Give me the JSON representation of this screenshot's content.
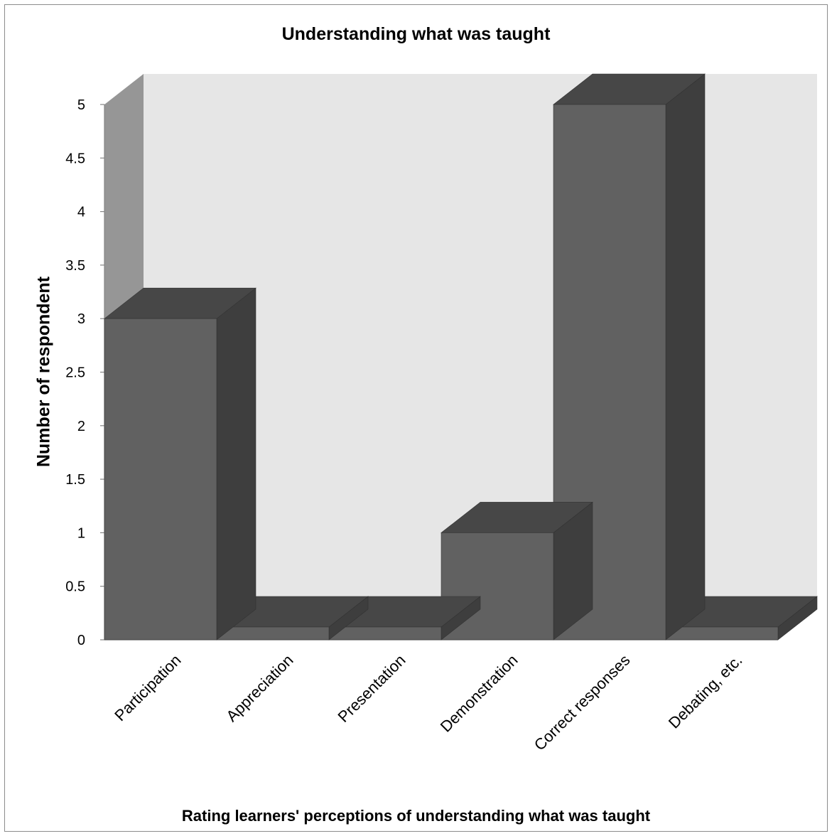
{
  "chart_data": {
    "type": "bar",
    "title": "Understanding what was taught",
    "xlabel": "Rating learners' perceptions of understanding what was taught",
    "ylabel": "Number of respondent",
    "categories": [
      "Participation",
      "Appreciation",
      "Presentation",
      "Demonstration",
      "Correct responses",
      "Debating, etc."
    ],
    "values": [
      3,
      0,
      0,
      1,
      5,
      0
    ],
    "ylim": [
      0,
      5
    ],
    "yticks": [
      0,
      0.5,
      1,
      1.5,
      2,
      2.5,
      3,
      3.5,
      4,
      4.5,
      5
    ],
    "ytick_labels": [
      "0",
      "0.5",
      "1",
      "1.5",
      "2",
      "2.5",
      "3",
      "3.5",
      "4",
      "4.5",
      "5"
    ],
    "style": "3d-column",
    "legend": "none",
    "grid": false,
    "colors": {
      "bar_front": "#616161",
      "bar_side": "#3e3e3e",
      "bar_top": "#474747",
      "back_wall": "#e6e6e6",
      "side_wall": "#969696"
    }
  }
}
